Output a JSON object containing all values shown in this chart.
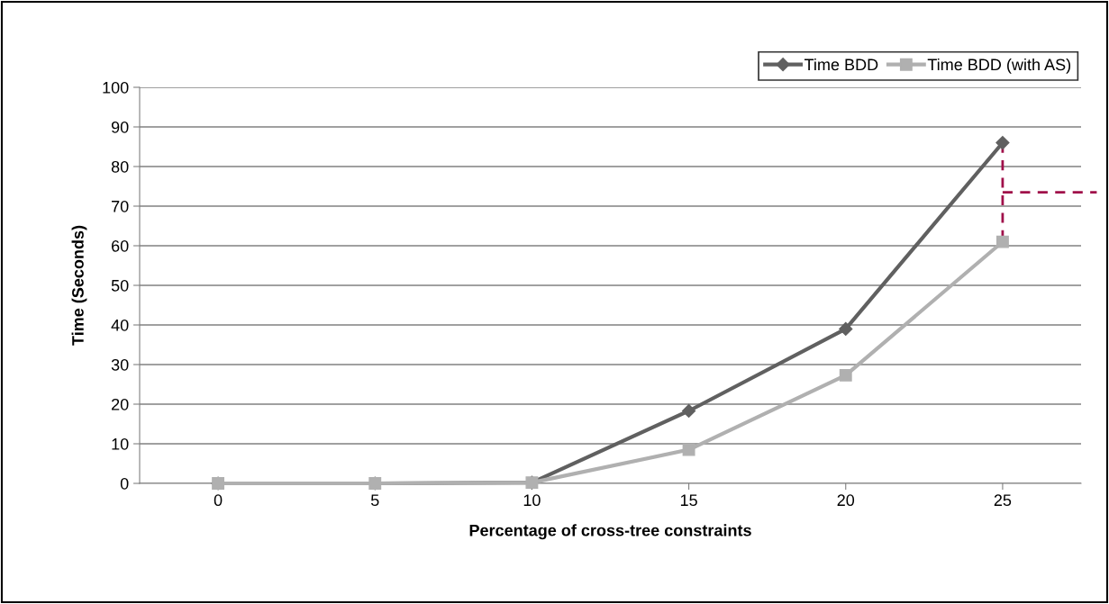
{
  "chart_data": {
    "type": "line",
    "xlabel": "Percentage of cross-tree constraints",
    "ylabel": "Time (Seconds)",
    "categories": [
      "0",
      "5",
      "10",
      "15",
      "20",
      "25"
    ],
    "series": [
      {
        "name": "Time BDD",
        "color": "#606060",
        "values": [
          0,
          0,
          0.2,
          18.3,
          39,
          86
        ],
        "marker": "diamond"
      },
      {
        "name": "Time BDD (with AS)",
        "color": "#b0b0b0",
        "values": [
          0,
          0,
          0.2,
          8.5,
          27.3,
          61
        ],
        "marker": "square"
      }
    ],
    "ylim": [
      0,
      100
    ],
    "yticks": [
      0,
      10,
      20,
      30,
      40,
      50,
      60,
      70,
      80,
      90,
      100
    ],
    "grid": "y",
    "legend": "top right",
    "line_style": "solid"
  }
}
